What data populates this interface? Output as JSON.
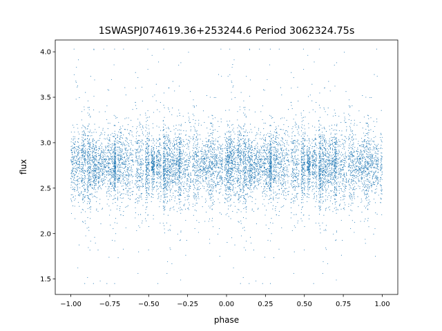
{
  "chart_data": {
    "type": "scatter",
    "title": "1SWASPJ074619.36+253244.6 Period 3062324.75s",
    "xlabel": "phase",
    "ylabel": "flux",
    "xlim": [
      -1.1,
      1.1
    ],
    "ylim": [
      1.33,
      4.13
    ],
    "xticks": [
      -1.0,
      -0.75,
      -0.5,
      -0.25,
      0.0,
      0.25,
      0.5,
      0.75,
      1.0
    ],
    "xtick_labels": [
      "−1.00",
      "−0.75",
      "−0.50",
      "−0.25",
      "0.00",
      "0.25",
      "0.50",
      "0.75",
      "1.00"
    ],
    "yticks": [
      1.5,
      2.0,
      2.5,
      3.0,
      3.5,
      4.0
    ],
    "ytick_labels": [
      "1.5",
      "2.0",
      "2.5",
      "3.0",
      "3.5",
      "4.0"
    ],
    "grid": false,
    "series": [
      {
        "color": "#1f77b4",
        "marker": "dot",
        "x_range": [
          -1.0,
          1.0
        ],
        "flux_center": 2.75,
        "flux_core_range": [
          2.4,
          3.1
        ],
        "flux_outlier_range": [
          1.45,
          4.03
        ],
        "note_points": "dense periodic light curve folded twice; points repeat with phase period 1.0"
      }
    ]
  }
}
